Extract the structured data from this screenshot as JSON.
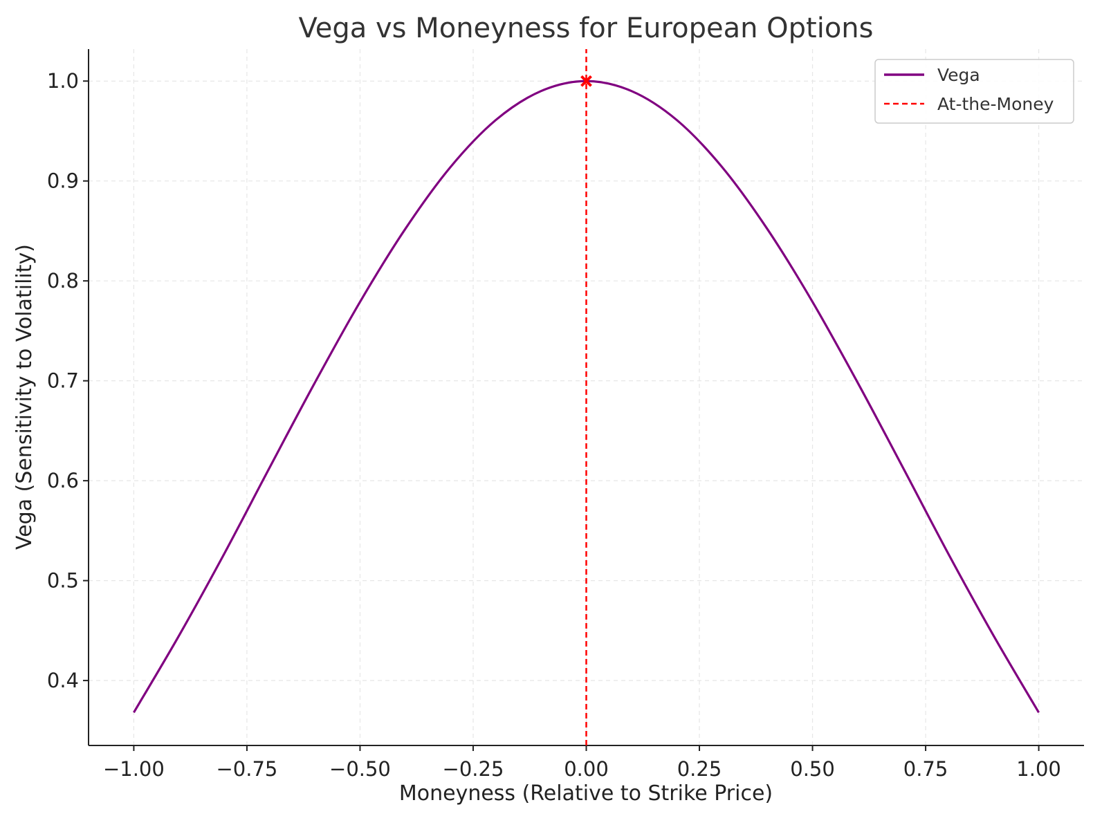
{
  "chart_data": {
    "type": "line",
    "title": "Vega vs Moneyness for European Options",
    "xlabel": "Moneyness (Relative to Strike Price)",
    "ylabel": "Vega (Sensitivity to Volatility)",
    "xlim": [
      -1.1,
      1.1
    ],
    "ylim": [
      0.335,
      1.032
    ],
    "xticks": [
      -1.0,
      -0.75,
      -0.5,
      -0.25,
      0.0,
      0.25,
      0.5,
      0.75,
      1.0
    ],
    "xtick_labels": [
      "−1.00",
      "−0.75",
      "−0.50",
      "−0.25",
      "0.00",
      "0.25",
      "0.50",
      "0.75",
      "1.00"
    ],
    "yticks": [
      0.4,
      0.5,
      0.6,
      0.7,
      0.8,
      0.9,
      1.0
    ],
    "ytick_labels": [
      "0.4",
      "0.5",
      "0.6",
      "0.7",
      "0.8",
      "0.9",
      "1.0"
    ],
    "grid": true,
    "legend_position": "top-right",
    "series": [
      {
        "name": "Vega",
        "color": "#800080",
        "style": "solid",
        "x": [
          -1.0,
          -0.9,
          -0.8,
          -0.7,
          -0.6,
          -0.5,
          -0.4,
          -0.3,
          -0.2,
          -0.1,
          0.0,
          0.1,
          0.2,
          0.3,
          0.4,
          0.5,
          0.6,
          0.7,
          0.8,
          0.9,
          1.0
        ],
        "y": [
          0.368,
          0.445,
          0.527,
          0.613,
          0.698,
          0.779,
          0.852,
          0.914,
          0.961,
          0.99,
          1.0,
          0.99,
          0.961,
          0.914,
          0.852,
          0.779,
          0.698,
          0.613,
          0.527,
          0.445,
          0.368
        ]
      },
      {
        "name": "At-the-Money",
        "color": "#ff0000",
        "style": "dashed",
        "x": [
          0.0,
          0.0
        ],
        "y": [
          0.335,
          1.032
        ]
      }
    ],
    "annotations": [
      {
        "type": "marker",
        "shape": "x",
        "x": 0.0,
        "y": 1.0,
        "color": "#ff0000"
      }
    ]
  }
}
